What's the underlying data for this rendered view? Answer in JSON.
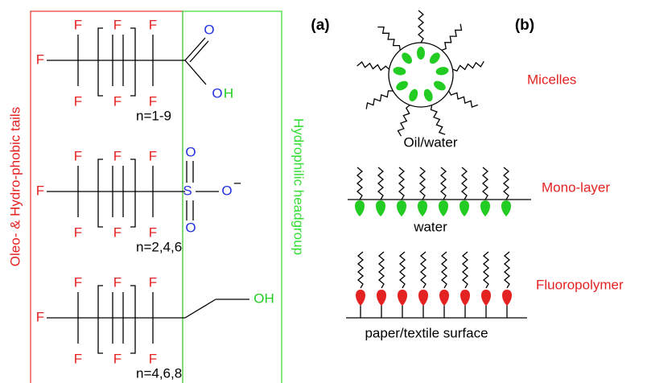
{
  "labels": {
    "tails": "Oleo- & Hydro-phobic tails",
    "headgroup": "Hydrophilic headgroup",
    "panel_a": "(a)",
    "panel_b": "(b)"
  },
  "molecules": [
    {
      "fluorines": [
        "F",
        "F",
        "F",
        "F",
        "F",
        "F",
        "F"
      ],
      "head": [
        "O",
        "O",
        "H"
      ],
      "repeat": "n=1-9"
    },
    {
      "fluorines": [
        "F",
        "F",
        "F",
        "F",
        "F",
        "F",
        "F"
      ],
      "head": [
        "O",
        "S",
        "O",
        "O",
        "−"
      ],
      "repeat": "n=2,4,6"
    },
    {
      "fluorines": [
        "F",
        "F",
        "F",
        "F",
        "F",
        "F",
        "F"
      ],
      "head": [
        "OH"
      ],
      "repeat": "n=4,6,8"
    }
  ],
  "panel_b": {
    "micelles": "Micelles",
    "oil_water": "Oil/water",
    "monolayer": "Mono-layer",
    "water": "water",
    "fluoropolymer": "Fluoropolymer",
    "surface": "paper/textile surface"
  }
}
